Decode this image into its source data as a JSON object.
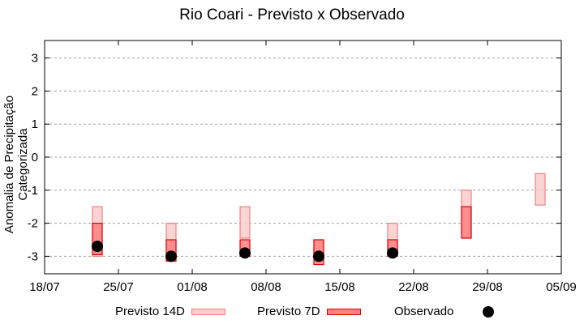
{
  "chart_data": {
    "type": "bar",
    "title": "Rio Coari - Previsto x Observado",
    "xlabel": "",
    "ylabel": "Anomalia de Precipitação Categorizada",
    "ylim": [
      -3.5,
      3.5
    ],
    "yticks": [
      3,
      2,
      1,
      0,
      -1,
      -2,
      -3
    ],
    "xticks": [
      "18/07",
      "25/07",
      "01/08",
      "08/08",
      "15/08",
      "22/08",
      "29/08",
      "05/09"
    ],
    "grid": "horizontal dotted",
    "legend_position": "bottom",
    "categories": [
      "23/07",
      "30/07",
      "06/08",
      "13/08",
      "20/08",
      "27/08",
      "03/09"
    ],
    "series": [
      {
        "name": "Previsto 14D",
        "type": "floating-bar",
        "color": "#fccccc",
        "edge": "#f08080",
        "values": [
          [
            -1.5,
            -3.0
          ],
          [
            -2.0,
            -3.1
          ],
          [
            -1.5,
            -2.45
          ],
          [
            -2.5,
            -3.1
          ],
          [
            -2.0,
            -3.0
          ],
          [
            -1.0,
            -2.45
          ],
          [
            -0.5,
            -1.45
          ]
        ]
      },
      {
        "name": "Previsto 7D",
        "type": "floating-bar",
        "color": "#ff8080",
        "edge": "#e00000",
        "values": [
          [
            -2.0,
            -2.95
          ],
          [
            -2.5,
            -3.15
          ],
          [
            -2.5,
            -3.0
          ],
          [
            -2.5,
            -3.25
          ],
          [
            -2.5,
            -3.0
          ],
          [
            -1.5,
            -2.45
          ],
          null
        ]
      },
      {
        "name": "Observado",
        "type": "scatter",
        "color": "#000000",
        "values": [
          -2.7,
          -3.0,
          -2.9,
          -3.0,
          -2.9,
          null,
          null
        ]
      }
    ]
  },
  "legend": {
    "item14": "Previsto 14D",
    "item7": "Previsto 7D",
    "itemObs": "Observado"
  }
}
